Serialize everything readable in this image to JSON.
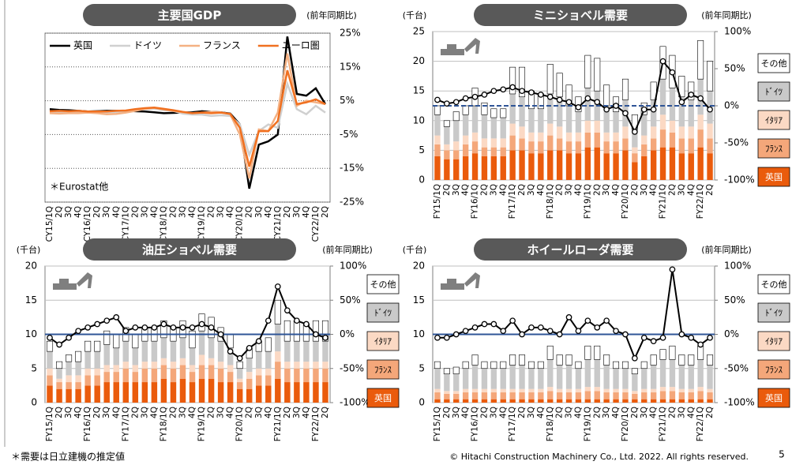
{
  "chart_data": [
    {
      "type": "line",
      "title": "主要国GDP",
      "ylabel": "(前年同期比)",
      "annotation": "＊Eurostat他",
      "categories": [
        "CY15/1Q",
        "2Q",
        "3Q",
        "4Q",
        "CY16/1Q",
        "2Q",
        "3Q",
        "4Q",
        "CY17/1Q",
        "2Q",
        "3Q",
        "4Q",
        "CY18/1Q",
        "2Q",
        "3Q",
        "4Q",
        "CY19/1Q",
        "2Q",
        "3Q",
        "4Q",
        "CY20/1Q",
        "2Q",
        "3Q",
        "4Q",
        "CY21/1Q",
        "2Q",
        "3Q",
        "4Q",
        "CY22/1Q",
        "2Q"
      ],
      "ylim": [
        -25,
        25
      ],
      "yticks": [
        {
          "value": 25,
          "label": "25%"
        },
        {
          "value": 15,
          "label": "15%"
        },
        {
          "value": 5,
          "label": "5%"
        },
        {
          "value": -5,
          "label": "-5%"
        },
        {
          "value": -15,
          "label": "-15%"
        },
        {
          "value": -25,
          "label": "-25%"
        }
      ],
      "grid": true,
      "legend": "top-left",
      "series": [
        {
          "name": "英国",
          "color": "#000000",
          "values": [
            2.5,
            2.3,
            2.2,
            2,
            1.8,
            1.9,
            2,
            2,
            2,
            1.9,
            1.8,
            1.6,
            1.3,
            1.4,
            1.5,
            1.6,
            1.9,
            1.7,
            1.6,
            1.2,
            -2,
            -21,
            -8,
            -7,
            -5,
            24,
            7,
            6.5,
            8.7,
            4
          ]
        },
        {
          "name": "ドイツ",
          "color": "#d0d0d0",
          "values": [
            1.5,
            1.6,
            1.7,
            1.6,
            1.8,
            1.8,
            1.6,
            1.7,
            2,
            2.2,
            2.5,
            2.7,
            2.2,
            2,
            1.2,
            0.9,
            0.9,
            0.5,
            0.7,
            0.5,
            -2,
            -11,
            -4,
            -2,
            -3,
            10,
            2.5,
            1,
            3.5,
            1.5
          ]
        },
        {
          "name": "フランス",
          "color": "#f4b183",
          "values": [
            1.3,
            1.2,
            1.3,
            1.3,
            1.5,
            1.3,
            1,
            1.1,
            1.5,
            2,
            2.6,
            2.9,
            2.4,
            2,
            1.6,
            1.3,
            1.5,
            1.7,
            1.6,
            1,
            -5,
            -18,
            -3.5,
            -4,
            1.5,
            19,
            3.5,
            5,
            4.5,
            4
          ]
        },
        {
          "name": "ユーロ圏",
          "color": "#f07020",
          "values": [
            1.9,
            2,
            1.9,
            2,
            1.8,
            1.8,
            1.8,
            2,
            2.1,
            2.5,
            2.8,
            3,
            2.6,
            2.2,
            1.7,
            1.3,
            1.5,
            1.3,
            1.5,
            1.1,
            -3,
            -14.5,
            -4,
            -4,
            -1,
            14,
            4,
            4.5,
            5.4,
            4
          ]
        }
      ]
    },
    {
      "type": "bar",
      "title": "ミニショベル需要",
      "ylabel": "(千台)",
      "y2label": "(前年同期比)",
      "categories": [
        "FY15/1Q",
        "2Q",
        "3Q",
        "4Q",
        "FY16/1Q",
        "2Q",
        "3Q",
        "4Q",
        "FY17/1Q",
        "2Q",
        "3Q",
        "4Q",
        "FY18/1Q",
        "2Q",
        "3Q",
        "4Q",
        "FY19/1Q",
        "2Q",
        "3Q",
        "4Q",
        "FY20/1Q",
        "2Q",
        "3Q",
        "4Q",
        "FY21/1Q",
        "2Q",
        "3Q",
        "4Q",
        "FY22/1Q",
        "2Q"
      ],
      "ylim": [
        0,
        25
      ],
      "yticks": [
        0,
        5,
        10,
        15,
        20,
        25
      ],
      "y2lim": [
        -100,
        100
      ],
      "y2ticks": [
        {
          "value": 100,
          "label": "100%"
        },
        {
          "value": 50,
          "label": "50%"
        },
        {
          "value": 0,
          "label": "0%"
        },
        {
          "value": -50,
          "label": "-50%"
        },
        {
          "value": -100,
          "label": "-100%"
        }
      ],
      "stacked": true,
      "series": [
        {
          "name": "英国",
          "color": "#ea5b0c",
          "values": [
            4,
            3.5,
            3.5,
            4,
            4.5,
            4,
            4,
            4,
            5,
            5,
            4.5,
            4.5,
            5,
            5,
            4.5,
            4.5,
            5.5,
            5.5,
            4.5,
            4.5,
            5,
            3,
            4,
            5,
            5.5,
            5.5,
            4.5,
            4.5,
            5.5,
            4.5
          ]
        },
        {
          "name": "ﾌﾗﾝｽ",
          "color": "#f4a77a",
          "values": [
            2,
            1.5,
            1.5,
            2,
            2,
            1.5,
            1.5,
            1.5,
            2.5,
            2,
            2,
            2,
            2.5,
            2,
            2,
            2,
            2.5,
            2.5,
            2,
            2,
            2,
            1.5,
            2,
            2,
            3,
            2.5,
            2.5,
            2.5,
            3,
            2.5
          ]
        },
        {
          "name": "ｲﾀﾘｱ",
          "color": "#fbd9c4",
          "values": [
            1.5,
            1,
            1.5,
            1.5,
            1.5,
            1.5,
            1.5,
            1.5,
            2,
            2,
            1.5,
            1.5,
            2,
            2,
            1.5,
            1.5,
            2,
            2,
            1.5,
            1.5,
            2,
            1,
            1.5,
            2,
            2.5,
            2,
            2,
            2,
            2.5,
            2.5
          ]
        },
        {
          "name": "ﾄﾞｲﾂ",
          "color": "#c9c9c9",
          "values": [
            3.5,
            3,
            3.5,
            3.5,
            4.5,
            4,
            3.5,
            3.5,
            5,
            5,
            4,
            4,
            5,
            5,
            4.5,
            3.5,
            5.5,
            5,
            4.5,
            3.5,
            4.5,
            3,
            3.5,
            4.5,
            6,
            5.5,
            5,
            4.5,
            6,
            5.5
          ]
        },
        {
          "name": "その他",
          "color": "#ffffff",
          "values": [
            1.5,
            1,
            1.5,
            1.5,
            3,
            2,
            1.5,
            1.5,
            4.5,
            5,
            3,
            2.5,
            5,
            4,
            3.5,
            2.5,
            5.5,
            5.5,
            3.5,
            2.5,
            3.5,
            2.5,
            2,
            3,
            5.5,
            5.5,
            3.5,
            3,
            6.5,
            5
          ]
        },
        {
          "axis": "y2",
          "color": "#000000",
          "values": [
            8,
            3,
            5,
            10,
            12,
            15,
            20,
            22,
            25,
            20,
            18,
            15,
            12,
            8,
            5,
            -2,
            10,
            5,
            -5,
            0,
            -10,
            -35,
            -5,
            -5,
            60,
            45,
            5,
            15,
            10,
            -5
          ]
        }
      ]
    },
    {
      "type": "bar",
      "title": "油圧ショベル需要",
      "ylabel": "(千台)",
      "y2label": "(前年同期比)",
      "categories": [
        "FY15/1Q",
        "2Q",
        "3Q",
        "4Q",
        "FY16/1Q",
        "2Q",
        "3Q",
        "4Q",
        "FY17/1Q",
        "2Q",
        "3Q",
        "4Q",
        "FY18/1Q",
        "2Q",
        "3Q",
        "4Q",
        "FY19/1Q",
        "2Q",
        "3Q",
        "4Q",
        "FY20/1Q",
        "2Q",
        "3Q",
        "4Q",
        "FY21/1Q",
        "2Q",
        "3Q",
        "4Q",
        "FY22/1Q",
        "2Q"
      ],
      "ylim": [
        0,
        20
      ],
      "yticks": [
        0,
        5,
        10,
        15,
        20
      ],
      "y2lim": [
        -100,
        100
      ],
      "y2ticks": [
        {
          "value": 100,
          "label": "100%"
        },
        {
          "value": 50,
          "label": "50%"
        },
        {
          "value": 0,
          "label": "0%"
        },
        {
          "value": -50,
          "label": "-50%"
        },
        {
          "value": -100,
          "label": "-100%"
        }
      ],
      "stacked": true,
      "series": [
        {
          "name": "英国",
          "color": "#ea5b0c",
          "values": [
            2.5,
            2,
            2,
            2,
            2.5,
            2.5,
            3,
            3,
            3,
            3,
            3,
            3,
            3.5,
            3,
            3.5,
            3,
            3.5,
            3.5,
            3,
            3,
            2,
            2,
            2.5,
            2.5,
            3.5,
            3,
            3,
            3,
            3,
            3
          ]
        },
        {
          "name": "ﾌﾗﾝｽ",
          "color": "#f4a77a",
          "values": [
            1.5,
            1,
            1,
            1,
            1.5,
            1.5,
            1.5,
            1.5,
            2,
            1.5,
            2,
            2,
            2,
            2,
            2,
            1.5,
            2,
            2,
            2,
            1.5,
            1,
            1.5,
            1.5,
            1.5,
            2.5,
            2,
            2,
            2,
            2,
            2
          ]
        },
        {
          "name": "ｲﾀﾘｱ",
          "color": "#fbd9c4",
          "values": [
            1,
            0.5,
            1,
            1,
            1,
            1,
            1,
            1,
            1,
            1,
            1,
            1,
            1,
            1,
            1,
            1,
            1.5,
            1,
            1,
            1,
            0.5,
            1,
            1,
            1,
            1.5,
            1,
            1,
            1,
            1,
            1
          ]
        },
        {
          "name": "ﾄﾞｲﾂ",
          "color": "#c9c9c9",
          "values": [
            2.5,
            1.5,
            2,
            2,
            2.5,
            2.5,
            3,
            2.5,
            3,
            2.5,
            3,
            3,
            3,
            3,
            3,
            2.5,
            3.5,
            3,
            3,
            2.5,
            1.5,
            2,
            2.5,
            2.5,
            4,
            3,
            3,
            3,
            3,
            3
          ]
        },
        {
          "name": "その他",
          "color": "#ffffff",
          "values": [
            1.5,
            1,
            1,
            1.5,
            1.5,
            1.5,
            2,
            2,
            2,
            2,
            2,
            2,
            2.5,
            2,
            2.5,
            2.5,
            2.5,
            3,
            2,
            2,
            1,
            1.5,
            1.5,
            2,
            3.5,
            3,
            3,
            2.5,
            3,
            3
          ]
        },
        {
          "axis": "y2",
          "color": "#000000",
          "values": [
            -5,
            -15,
            -5,
            5,
            10,
            15,
            20,
            25,
            5,
            10,
            10,
            10,
            15,
            10,
            10,
            10,
            15,
            10,
            0,
            -25,
            -35,
            -20,
            -10,
            20,
            70,
            35,
            20,
            15,
            0,
            -5
          ]
        }
      ]
    },
    {
      "type": "bar",
      "title": "ホイールローダ需要",
      "ylabel": "(千台)",
      "y2label": "(前年同期比)",
      "categories": [
        "FY15/1Q",
        "2Q",
        "3Q",
        "4Q",
        "FY16/1Q",
        "2Q",
        "3Q",
        "4Q",
        "FY17/1Q",
        "2Q",
        "3Q",
        "4Q",
        "FY18/1Q",
        "2Q",
        "3Q",
        "4Q",
        "FY19/1Q",
        "2Q",
        "3Q",
        "4Q",
        "FY20/1Q",
        "2Q",
        "3Q",
        "4Q",
        "FY21/1Q",
        "2Q",
        "3Q",
        "4Q",
        "FY22/1Q",
        "2Q"
      ],
      "ylim": [
        0,
        20
      ],
      "yticks": [
        0,
        5,
        10,
        15,
        20
      ],
      "y2lim": [
        -100,
        100
      ],
      "y2ticks": [
        {
          "value": 100,
          "label": "100%"
        },
        {
          "value": 50,
          "label": "50%"
        },
        {
          "value": 0,
          "label": "0%"
        },
        {
          "value": -50,
          "label": "-50%"
        },
        {
          "value": -100,
          "label": "-100%"
        }
      ],
      "stacked": true,
      "series": [
        {
          "name": "英国",
          "color": "#ea5b0c",
          "values": [
            0.5,
            0.5,
            0.5,
            0.5,
            0.5,
            0.5,
            0.5,
            0.5,
            0.5,
            0.5,
            0.5,
            0.5,
            0.5,
            0.5,
            0.5,
            0.5,
            0.5,
            0.5,
            0.5,
            0.5,
            0.5,
            0.5,
            0.5,
            0.5,
            0.5,
            0.5,
            0.5,
            0.5,
            0.5,
            0.5
          ]
        },
        {
          "name": "ﾌﾗﾝｽ",
          "color": "#f4a77a",
          "values": [
            1,
            0.8,
            0.8,
            1,
            1,
            1,
            1,
            1,
            1,
            1,
            1,
            1,
            1.2,
            1,
            1,
            1,
            1.2,
            1.2,
            1,
            1,
            1,
            0.8,
            1,
            1,
            1.2,
            1.2,
            1,
            1,
            1.2,
            1
          ]
        },
        {
          "name": "ｲﾀﾘｱ",
          "color": "#fbd9c4",
          "values": [
            0.5,
            0.4,
            0.4,
            0.5,
            0.5,
            0.5,
            0.5,
            0.5,
            0.5,
            0.5,
            0.5,
            0.5,
            0.6,
            0.5,
            0.5,
            0.5,
            0.6,
            0.6,
            0.5,
            0.5,
            0.5,
            0.4,
            0.5,
            0.5,
            0.6,
            0.6,
            0.5,
            0.5,
            0.6,
            0.5
          ]
        },
        {
          "name": "ﾄﾞｲﾂ",
          "color": "#c9c9c9",
          "values": [
            3,
            2.5,
            2.5,
            3,
            3.5,
            3,
            3,
            3,
            3.5,
            3.5,
            3,
            3,
            4,
            3.5,
            3.5,
            3,
            4,
            4,
            3.5,
            3,
            3,
            2.5,
            3,
            3.5,
            4,
            4,
            3.5,
            3.5,
            4,
            3.5
          ]
        },
        {
          "name": "その他",
          "color": "#ffffff",
          "values": [
            1,
            0.8,
            1,
            1,
            1.5,
            1,
            1,
            1,
            1.5,
            1.5,
            1,
            1,
            2,
            1.5,
            1.5,
            1,
            2,
            2,
            1.5,
            1,
            1,
            0.8,
            1,
            1.5,
            1.5,
            2,
            1.5,
            1.5,
            2,
            1.5
          ]
        },
        {
          "axis": "y2",
          "color": "#000000",
          "values": [
            -5,
            -5,
            0,
            5,
            10,
            15,
            15,
            5,
            20,
            0,
            10,
            10,
            5,
            0,
            25,
            5,
            20,
            10,
            20,
            5,
            0,
            -35,
            -5,
            -10,
            -5,
            95,
            0,
            -5,
            -15,
            -5
          ]
        }
      ]
    }
  ],
  "footer": {
    "note": "＊需要は日立建機の推定値",
    "copyright": "© Hitachi Construction Machinery Co., Ltd. 2022. All rights reserved.",
    "page": "5"
  }
}
